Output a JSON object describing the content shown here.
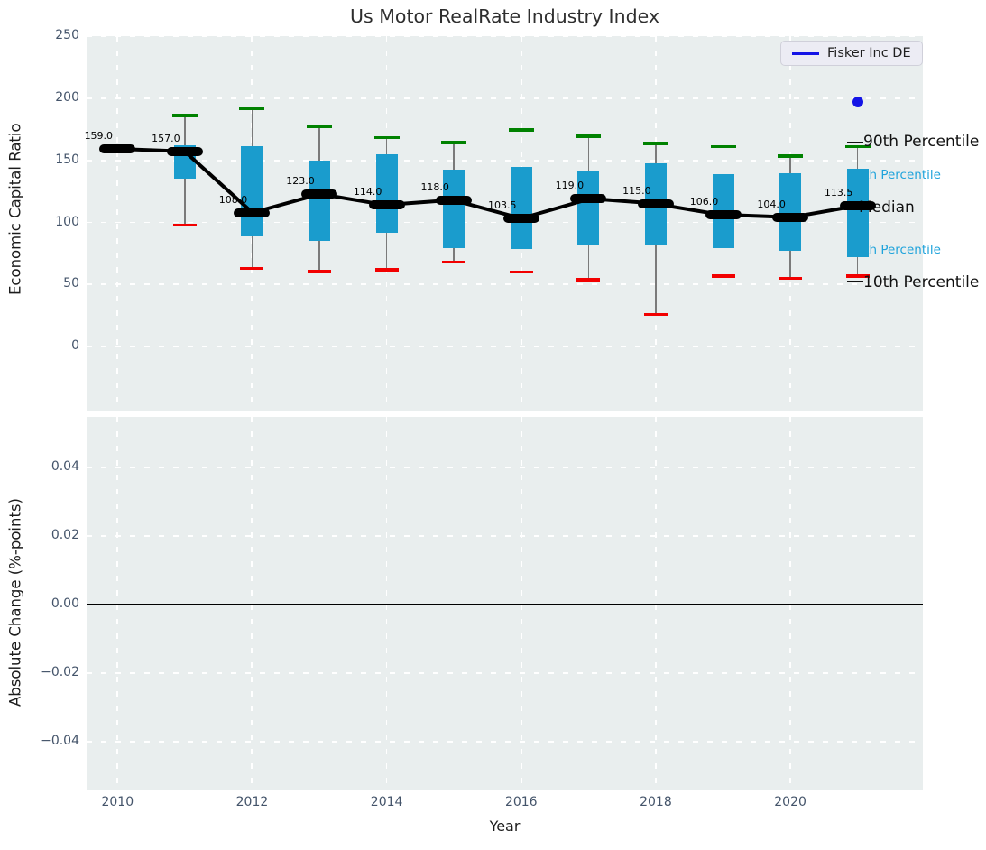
{
  "title": "Us Motor RealRate Industry Index",
  "legend": {
    "label": "Fisker Inc DE"
  },
  "annotations": {
    "p90": "90th Percentile",
    "p75": "75th Percentile",
    "median": "Median",
    "p25": "25th Percentile",
    "p10": "10th Percentile"
  },
  "colors": {
    "box": "#1a9ccd",
    "whisker": "#7a7a7a",
    "p90_cap": "#008200",
    "p10_cap": "#f20000",
    "median": "#000000",
    "series": "#000000",
    "fisker": "#1414e6",
    "annotation_cyan": "#1fa3db",
    "panel_bg": "#e9eeee",
    "grid": "#ffffff",
    "tick_color": "#44546a"
  },
  "top_axis": {
    "ylabel": "Economic Capital Ratio",
    "ylim": [
      -52,
      250
    ],
    "yticks": [
      [
        250,
        "250"
      ],
      [
        200,
        "200"
      ],
      [
        150,
        "150"
      ],
      [
        100,
        "100"
      ],
      [
        50,
        "50"
      ],
      [
        0,
        "0"
      ]
    ]
  },
  "bottom_axis": {
    "ylabel": "Absolute Change (%-points)",
    "ylim": [
      -0.054,
      0.0547
    ],
    "yticks": [
      [
        0.04,
        "0.04"
      ],
      [
        0.02,
        "0.02"
      ],
      [
        0,
        "0.00"
      ],
      [
        -0.02,
        "−0.02"
      ],
      [
        -0.04,
        "−0.04"
      ]
    ],
    "zero_line": 0.0
  },
  "xaxis": {
    "label": "Year",
    "xlim": [
      2009.54,
      2021.97
    ],
    "ticks": [
      [
        2010,
        "2010"
      ],
      [
        2012,
        "2012"
      ],
      [
        2014,
        "2014"
      ],
      [
        2016,
        "2016"
      ],
      [
        2018,
        "2018"
      ],
      [
        2020,
        "2020"
      ]
    ]
  },
  "chart_data": {
    "type": "boxplot+line",
    "description": "Industry percentile boxes (10th-90th percentile whisker caps, 25th-75th percentile boxes) of Economic Capital Ratio by year, with industry median line and labels; Fisker Inc DE plotted as a single point in 2021. Bottom panel (Absolute Change, %-points) is empty except the zero line.",
    "boxes": [
      {
        "year": 2010,
        "median": 159.0,
        "label": "159.0",
        "q1": null,
        "q3": null,
        "p10": null,
        "p90": 161
      },
      {
        "year": 2011,
        "median": 157.0,
        "label": "157.0",
        "q1": 135,
        "q3": 162.5,
        "p10": 98,
        "p90": 186
      },
      {
        "year": 2012,
        "median": 108.0,
        "label": "108.0",
        "q1": 88.5,
        "q3": 161.5,
        "p10": 63,
        "p90": 191.5
      },
      {
        "year": 2013,
        "median": 123.0,
        "label": "123.0",
        "q1": 85.5,
        "q3": 150,
        "p10": 61,
        "p90": 177.5
      },
      {
        "year": 2014,
        "median": 114.0,
        "label": "114.0",
        "q1": 91.5,
        "q3": 155,
        "p10": 62,
        "p90": 168.5
      },
      {
        "year": 2015,
        "median": 118.0,
        "label": "118.0",
        "q1": 79.5,
        "q3": 142.5,
        "p10": 68,
        "p90": 164.5
      },
      {
        "year": 2016,
        "median": 103.5,
        "label": "103.5",
        "q1": 78.5,
        "q3": 144.5,
        "p10": 60,
        "p90": 174.5
      },
      {
        "year": 2017,
        "median": 119.0,
        "label": "119.0",
        "q1": 82,
        "q3": 142,
        "p10": 54,
        "p90": 169.5
      },
      {
        "year": 2018,
        "median": 115.0,
        "label": "115.0",
        "q1": 82.5,
        "q3": 148,
        "p10": 26,
        "p90": 163.5
      },
      {
        "year": 2019,
        "median": 106.0,
        "label": "106.0",
        "q1": 79.5,
        "q3": 139,
        "p10": 57,
        "p90": 161
      },
      {
        "year": 2020,
        "median": 104.0,
        "label": "104.0",
        "q1": 77,
        "q3": 140,
        "p10": 55,
        "p90": 153.5
      },
      {
        "year": 2021,
        "median": 113.5,
        "label": "113.5",
        "q1": 72,
        "q3": 143.5,
        "p10": 57,
        "p90": 161
      }
    ],
    "series": [
      {
        "name": "Fisker Inc DE",
        "points": [
          {
            "x": 2021,
            "y": 197
          }
        ]
      }
    ]
  }
}
